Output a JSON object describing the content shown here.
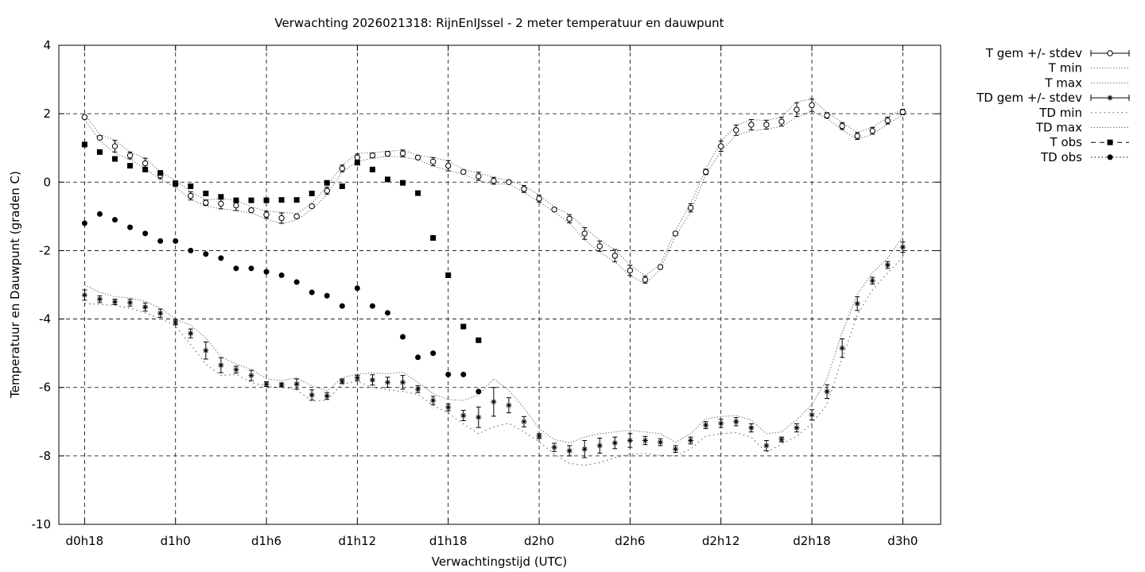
{
  "chart_data": {
    "type": "line",
    "title": "Verwachting 2026021318: RijnEnIJssel - 2 meter temperatuur en dauwpunt",
    "xlabel": "Verwachtingstijd (UTC)",
    "ylabel": "Temperatuur en Dauwpunt (graden C)",
    "ylim": [
      -10,
      4
    ],
    "xlim_hours": [
      -1.7,
      56.5
    ],
    "yticks": [
      {
        "value": 4,
        "label": "4"
      },
      {
        "value": 2,
        "label": "2"
      },
      {
        "value": 0,
        "label": "0"
      },
      {
        "value": -2,
        "label": "-2"
      },
      {
        "value": -4,
        "label": "-4"
      },
      {
        "value": -6,
        "label": "-6"
      },
      {
        "value": -8,
        "label": "-8"
      },
      {
        "value": -10,
        "label": "-10"
      }
    ],
    "xticks": [
      {
        "value": 0,
        "label": "d0h18"
      },
      {
        "value": 6,
        "label": "d1h0"
      },
      {
        "value": 12,
        "label": "d1h6"
      },
      {
        "value": 18,
        "label": "d1h12"
      },
      {
        "value": 24,
        "label": "d1h18"
      },
      {
        "value": 30,
        "label": "d2h0"
      },
      {
        "value": 36,
        "label": "d2h6"
      },
      {
        "value": 42,
        "label": "d2h12"
      },
      {
        "value": 48,
        "label": "d2h18"
      },
      {
        "value": 54,
        "label": "d3h0"
      }
    ],
    "grid": true,
    "legend_position": "right",
    "legend": [
      {
        "label": "T gem +/- stdev",
        "style": "errorbar-circle"
      },
      {
        "label": "T min",
        "style": "dotted"
      },
      {
        "label": "T max",
        "style": "dotted"
      },
      {
        "label": "TD gem +/- stdev",
        "style": "errorbar-star"
      },
      {
        "label": "TD min",
        "style": "dotted-sparse"
      },
      {
        "label": "TD max",
        "style": "dotted"
      },
      {
        "label": "T obs",
        "style": "dashed-square"
      },
      {
        "label": "TD obs",
        "style": "dotted-circle"
      }
    ],
    "series": {
      "t_gem": {
        "name": "T gem +/- stdev",
        "x": [
          0,
          1,
          2,
          3,
          4,
          5,
          6,
          7,
          8,
          9,
          10,
          11,
          12,
          13,
          14,
          15,
          16,
          17,
          18,
          19,
          20,
          21,
          22,
          23,
          24,
          25,
          26,
          27,
          28,
          29,
          30,
          31,
          32,
          33,
          34,
          35,
          36,
          37,
          38,
          39,
          40,
          41,
          42,
          43,
          44,
          45,
          46,
          47,
          48,
          49,
          50,
          51,
          52,
          53,
          54
        ],
        "y": [
          1.9,
          1.3,
          1.05,
          0.78,
          0.55,
          0.2,
          -0.05,
          -0.4,
          -0.6,
          -0.63,
          -0.68,
          -0.82,
          -0.95,
          -1.05,
          -1.0,
          -0.7,
          -0.25,
          0.4,
          0.72,
          0.78,
          0.83,
          0.84,
          0.72,
          0.6,
          0.48,
          0.3,
          0.17,
          0.04,
          0.0,
          -0.2,
          -0.48,
          -0.8,
          -1.07,
          -1.5,
          -1.87,
          -2.15,
          -2.58,
          -2.85,
          -2.48,
          -1.5,
          -0.75,
          0.3,
          1.05,
          1.52,
          1.68,
          1.68,
          1.77,
          2.12,
          2.25,
          1.95,
          1.64,
          1.35,
          1.5,
          1.8,
          2.05
        ],
        "stdev": [
          0.05,
          0.05,
          0.17,
          0.1,
          0.15,
          0.1,
          0.08,
          0.12,
          0.08,
          0.15,
          0.15,
          0.05,
          0.1,
          0.15,
          0.05,
          0.05,
          0.1,
          0.1,
          0.1,
          0.07,
          0.07,
          0.1,
          0.05,
          0.12,
          0.15,
          0.05,
          0.12,
          0.1,
          0.05,
          0.1,
          0.1,
          0.05,
          0.12,
          0.17,
          0.15,
          0.18,
          0.15,
          0.1,
          0.05,
          0.05,
          0.12,
          0.08,
          0.15,
          0.15,
          0.15,
          0.13,
          0.13,
          0.2,
          0.18,
          0.08,
          0.1,
          0.1,
          0.1,
          0.1,
          0.08
        ]
      },
      "t_min": {
        "name": "T min",
        "x": [
          0,
          1,
          2,
          3,
          4,
          5,
          6,
          7,
          8,
          9,
          10,
          11,
          12,
          13,
          14,
          15,
          16,
          17,
          18,
          19,
          20,
          21,
          22,
          23,
          24,
          25,
          26,
          27,
          28,
          29,
          30,
          31,
          32,
          33,
          34,
          35,
          36,
          37,
          38,
          39,
          40,
          41,
          42,
          43,
          44,
          45,
          46,
          47,
          48,
          49,
          50,
          51,
          52,
          53,
          54
        ],
        "y": [
          1.82,
          1.22,
          0.85,
          0.66,
          0.4,
          0.08,
          -0.15,
          -0.5,
          -0.7,
          -0.78,
          -0.83,
          -0.9,
          -1.07,
          -1.22,
          -1.1,
          -0.8,
          -0.36,
          0.3,
          0.6,
          0.7,
          0.76,
          0.74,
          0.66,
          0.47,
          0.34,
          0.23,
          0.05,
          -0.06,
          -0.05,
          -0.3,
          -0.58,
          -0.87,
          -1.2,
          -1.68,
          -2.05,
          -2.33,
          -2.73,
          -2.97,
          -2.55,
          -1.58,
          -0.87,
          0.22,
          0.9,
          1.37,
          1.5,
          1.55,
          1.63,
          1.9,
          2.07,
          1.86,
          1.53,
          1.25,
          1.4,
          1.7,
          1.97
        ]
      },
      "t_max": {
        "name": "T max",
        "x": [
          0,
          1,
          2,
          3,
          4,
          5,
          6,
          7,
          8,
          9,
          10,
          11,
          12,
          13,
          14,
          15,
          16,
          17,
          18,
          19,
          20,
          21,
          22,
          23,
          24,
          25,
          26,
          27,
          28,
          29,
          30,
          31,
          32,
          33,
          34,
          35,
          36,
          37,
          38,
          39,
          40,
          41,
          42,
          43,
          44,
          45,
          46,
          47,
          48,
          49,
          50,
          51,
          52,
          53,
          54
        ],
        "y": [
          1.98,
          1.4,
          1.22,
          0.88,
          0.7,
          0.3,
          0.05,
          -0.28,
          -0.52,
          -0.48,
          -0.53,
          -0.72,
          -0.85,
          -0.88,
          -0.92,
          -0.62,
          -0.13,
          0.5,
          0.84,
          0.86,
          0.9,
          0.94,
          0.78,
          0.72,
          0.62,
          0.37,
          0.27,
          0.14,
          0.05,
          -0.1,
          -0.38,
          -0.72,
          -0.95,
          -1.33,
          -1.7,
          -1.97,
          -2.43,
          -2.73,
          -2.4,
          -1.42,
          -0.63,
          0.38,
          1.2,
          1.65,
          1.83,
          1.8,
          1.9,
          2.35,
          2.43,
          2.04,
          1.75,
          1.45,
          1.6,
          1.9,
          2.13
        ]
      },
      "td_gem": {
        "name": "TD gem +/- stdev",
        "x": [
          0,
          1,
          2,
          3,
          4,
          5,
          6,
          7,
          8,
          9,
          10,
          11,
          12,
          13,
          14,
          15,
          16,
          17,
          18,
          19,
          20,
          21,
          22,
          23,
          24,
          25,
          26,
          27,
          28,
          29,
          30,
          31,
          32,
          33,
          34,
          35,
          36,
          37,
          38,
          39,
          40,
          41,
          42,
          43,
          44,
          45,
          46,
          47,
          48,
          49,
          50,
          51,
          52,
          53,
          54
        ],
        "y": [
          -3.3,
          -3.42,
          -3.5,
          -3.52,
          -3.65,
          -3.83,
          -4.1,
          -4.42,
          -4.92,
          -5.35,
          -5.48,
          -5.65,
          -5.9,
          -5.92,
          -5.9,
          -6.22,
          -6.25,
          -5.82,
          -5.72,
          -5.78,
          -5.85,
          -5.85,
          -6.05,
          -6.38,
          -6.58,
          -6.82,
          -6.87,
          -6.42,
          -6.52,
          -7.0,
          -7.42,
          -7.75,
          -7.85,
          -7.8,
          -7.7,
          -7.62,
          -7.55,
          -7.55,
          -7.6,
          -7.8,
          -7.55,
          -7.1,
          -7.05,
          -7.0,
          -7.18,
          -7.7,
          -7.52,
          -7.18,
          -6.8,
          -6.12,
          -4.85,
          -3.55,
          -2.88,
          -2.42,
          -1.9
        ],
        "stdev": [
          0.15,
          0.1,
          0.08,
          0.1,
          0.12,
          0.12,
          0.07,
          0.13,
          0.25,
          0.22,
          0.1,
          0.15,
          0.07,
          0.05,
          0.15,
          0.15,
          0.1,
          0.07,
          0.08,
          0.15,
          0.15,
          0.2,
          0.1,
          0.12,
          0.1,
          0.15,
          0.3,
          0.42,
          0.22,
          0.15,
          0.07,
          0.12,
          0.15,
          0.25,
          0.22,
          0.17,
          0.2,
          0.12,
          0.1,
          0.1,
          0.1,
          0.1,
          0.12,
          0.12,
          0.12,
          0.15,
          0.07,
          0.12,
          0.15,
          0.2,
          0.27,
          0.2,
          0.1,
          0.1,
          0.15
        ]
      },
      "td_min": {
        "name": "TD min",
        "x": [
          0,
          1,
          2,
          3,
          4,
          5,
          6,
          7,
          8,
          9,
          10,
          11,
          12,
          13,
          14,
          15,
          16,
          17,
          18,
          19,
          20,
          21,
          22,
          23,
          24,
          25,
          26,
          27,
          28,
          29,
          30,
          31,
          32,
          33,
          34,
          35,
          36,
          37,
          38,
          39,
          40,
          41,
          42,
          43,
          44,
          45,
          46,
          47,
          48,
          49,
          50,
          51,
          52,
          53,
          54
        ],
        "y": [
          -3.55,
          -3.57,
          -3.6,
          -3.68,
          -3.82,
          -3.98,
          -4.2,
          -4.75,
          -5.32,
          -5.65,
          -5.62,
          -5.85,
          -5.97,
          -6.0,
          -6.07,
          -6.4,
          -6.37,
          -5.9,
          -5.82,
          -6.0,
          -6.07,
          -6.12,
          -6.2,
          -6.53,
          -6.75,
          -7.07,
          -7.35,
          -7.15,
          -7.05,
          -7.3,
          -7.58,
          -7.95,
          -8.22,
          -8.27,
          -8.2,
          -8.05,
          -7.95,
          -7.93,
          -7.98,
          -8.0,
          -7.8,
          -7.42,
          -7.35,
          -7.32,
          -7.45,
          -7.9,
          -7.65,
          -7.43,
          -7.05,
          -6.5,
          -5.15,
          -3.88,
          -3.15,
          -2.65,
          -2.2
        ]
      },
      "td_max": {
        "name": "TD max",
        "x": [
          0,
          1,
          2,
          3,
          4,
          5,
          6,
          7,
          8,
          9,
          10,
          11,
          12,
          13,
          14,
          15,
          16,
          17,
          18,
          19,
          20,
          21,
          22,
          23,
          24,
          25,
          26,
          27,
          28,
          29,
          30,
          31,
          32,
          33,
          34,
          35,
          36,
          37,
          38,
          39,
          40,
          41,
          42,
          43,
          44,
          45,
          46,
          47,
          48,
          49,
          50,
          51,
          52,
          53,
          54
        ],
        "y": [
          -3.0,
          -3.22,
          -3.35,
          -3.38,
          -3.48,
          -3.68,
          -4.0,
          -4.18,
          -4.55,
          -5.1,
          -5.32,
          -5.47,
          -5.75,
          -5.8,
          -5.72,
          -5.95,
          -6.1,
          -5.72,
          -5.6,
          -5.58,
          -5.6,
          -5.55,
          -5.85,
          -6.18,
          -6.35,
          -6.38,
          -6.22,
          -5.75,
          -6.08,
          -6.6,
          -7.2,
          -7.52,
          -7.62,
          -7.45,
          -7.35,
          -7.3,
          -7.25,
          -7.3,
          -7.35,
          -7.6,
          -7.35,
          -6.92,
          -6.85,
          -6.82,
          -6.95,
          -7.35,
          -7.3,
          -6.95,
          -6.5,
          -5.75,
          -4.4,
          -3.28,
          -2.65,
          -2.22,
          -1.6
        ]
      },
      "t_obs": {
        "name": "T obs",
        "x": [
          0,
          1,
          2,
          3,
          4,
          5,
          6,
          7,
          8,
          9,
          10,
          11,
          12,
          13,
          14,
          15,
          16,
          17,
          18,
          19,
          20,
          21,
          22,
          23,
          24,
          25,
          26
        ],
        "y": [
          1.1,
          0.88,
          0.68,
          0.48,
          0.37,
          0.27,
          -0.03,
          -0.12,
          -0.33,
          -0.43,
          -0.53,
          -0.53,
          -0.53,
          -0.52,
          -0.52,
          -0.33,
          -0.02,
          -0.12,
          0.57,
          0.37,
          0.08,
          -0.02,
          -0.32,
          -1.63,
          -2.72,
          -4.22,
          -4.62
        ]
      },
      "td_obs": {
        "name": "TD obs",
        "x": [
          0,
          1,
          2,
          3,
          4,
          5,
          6,
          7,
          8,
          9,
          10,
          11,
          12,
          13,
          14,
          15,
          16,
          17,
          18,
          19,
          20,
          21,
          22,
          23,
          24,
          25,
          26
        ],
        "y": [
          -1.2,
          -0.93,
          -1.1,
          -1.32,
          -1.5,
          -1.72,
          -1.72,
          -2.0,
          -2.1,
          -2.22,
          -2.52,
          -2.52,
          -2.62,
          -2.72,
          -2.92,
          -3.22,
          -3.32,
          -3.62,
          -3.1,
          -3.62,
          -3.82,
          -4.52,
          -5.12,
          -5.0,
          -5.62,
          -5.62,
          -6.12
        ]
      }
    }
  }
}
